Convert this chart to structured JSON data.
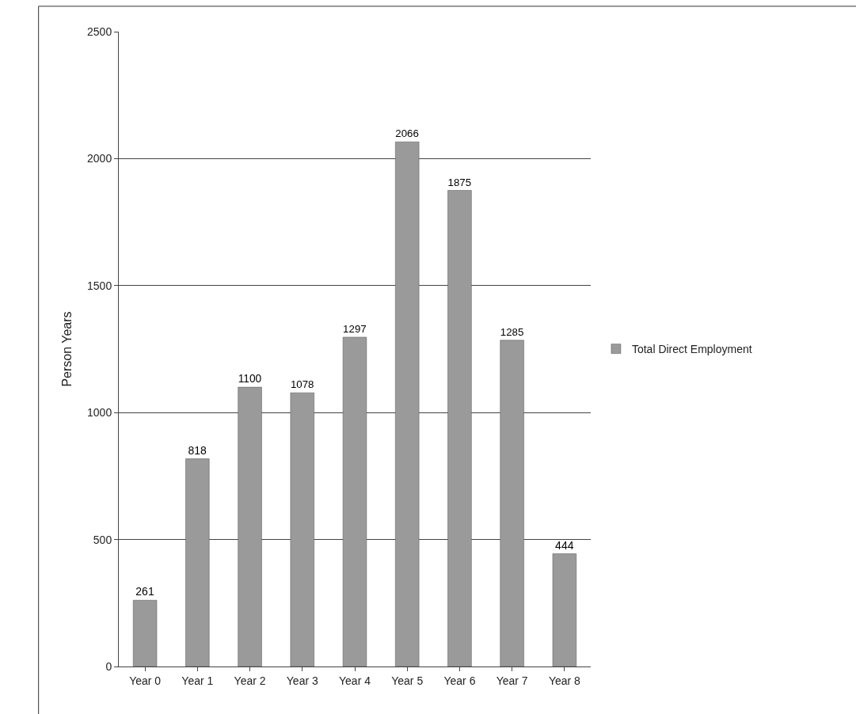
{
  "chart_data": {
    "type": "bar",
    "ylabel": "Person Years",
    "categories": [
      "Year 0",
      "Year 1",
      "Year 2",
      "Year 3",
      "Year 4",
      "Year 5",
      "Year 6",
      "Year 7",
      "Year 8"
    ],
    "series": [
      {
        "name": "Total Direct Employment",
        "color": "#9a9a9a",
        "values": [
          261,
          818,
          1100,
          1078,
          1297,
          2066,
          1875,
          1285,
          444
        ]
      }
    ],
    "ylim": [
      0,
      2500
    ],
    "yticks": [
      0,
      500,
      1000,
      1500,
      2000,
      2500
    ],
    "grid": "y",
    "legend": "right",
    "data_labels": true
  }
}
